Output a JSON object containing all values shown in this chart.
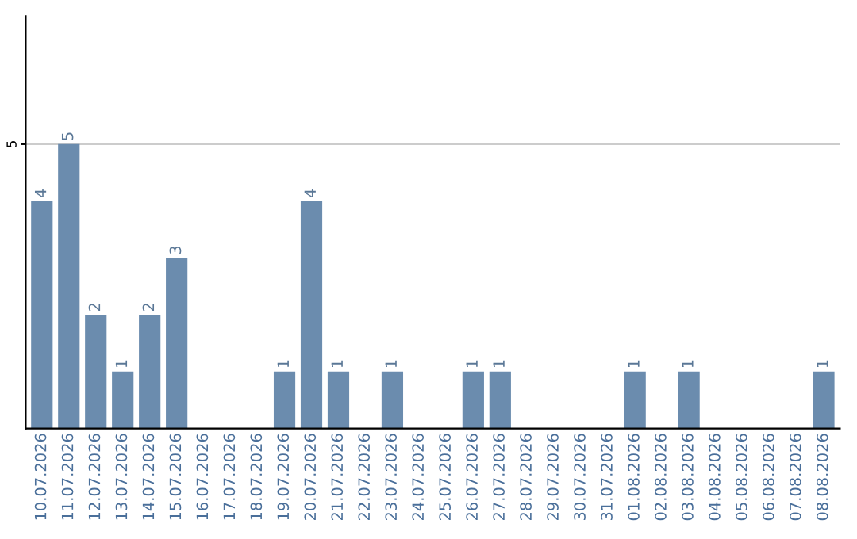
{
  "chart_data": {
    "type": "bar",
    "categories": [
      "10.07.2026",
      "11.07.2026",
      "12.07.2026",
      "13.07.2026",
      "14.07.2026",
      "15.07.2026",
      "16.07.2026",
      "17.07.2026",
      "18.07.2026",
      "19.07.2026",
      "20.07.2026",
      "21.07.2026",
      "22.07.2026",
      "23.07.2026",
      "24.07.2026",
      "25.07.2026",
      "26.07.2026",
      "27.07.2026",
      "28.07.2026",
      "29.07.2026",
      "30.07.2026",
      "31.07.2026",
      "01.08.2026",
      "02.08.2026",
      "03.08.2026",
      "04.08.2026",
      "05.08.2026",
      "06.08.2026",
      "07.08.2026",
      "08.08.2026"
    ],
    "values": [
      4,
      5,
      2,
      1,
      2,
      3,
      0,
      0,
      0,
      1,
      4,
      1,
      0,
      1,
      0,
      0,
      1,
      1,
      0,
      0,
      0,
      0,
      1,
      0,
      1,
      0,
      0,
      0,
      0,
      1
    ],
    "value_labels": [
      "4",
      "5",
      "2",
      "1",
      "2",
      "3",
      null,
      null,
      null,
      "1",
      "4",
      "1",
      null,
      "1",
      null,
      null,
      "1",
      "1",
      null,
      null,
      null,
      null,
      "1",
      null,
      "1",
      null,
      null,
      null,
      null,
      "1"
    ],
    "color": "#6b8cae",
    "ylim": [
      0,
      7.25
    ],
    "yticks": [
      5
    ],
    "grid": "y"
  }
}
